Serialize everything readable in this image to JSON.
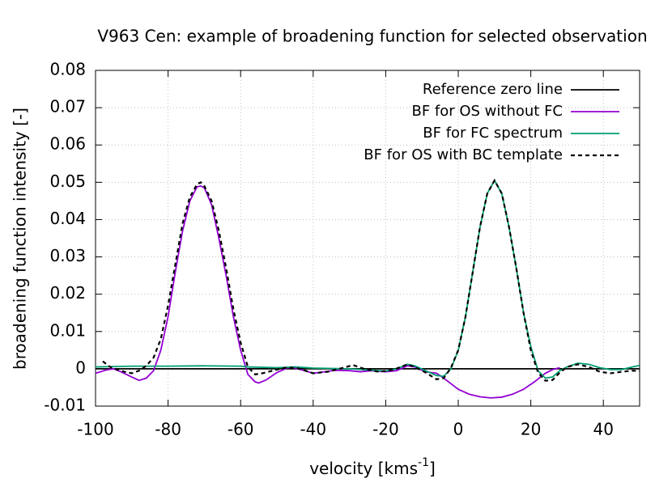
{
  "chart_data": {
    "type": "line",
    "title": "V963 Cen: example of broadening function for selected observation",
    "xlabel": [
      "velocity [kms",
      "-1",
      "]"
    ],
    "ylabel": "broadening function intensity [-]",
    "xlim": [
      -100,
      50
    ],
    "xticks": [
      -100,
      -80,
      -60,
      -40,
      -20,
      0,
      20,
      40
    ],
    "ylim": [
      -0.01,
      0.08
    ],
    "yticks": [
      -0.01,
      0,
      0.01,
      0.02,
      0.03,
      0.04,
      0.05,
      0.06,
      0.07,
      0.08
    ],
    "grid": true,
    "legend": "top-right",
    "series": [
      {
        "name": "Reference zero line",
        "color": "#000000",
        "dashed": false,
        "x": [
          -100,
          50
        ],
        "values": [
          0,
          0
        ]
      },
      {
        "name": "BF for OS without FC",
        "color": "#9400d3",
        "dashed": false,
        "x": [
          -100,
          -97,
          -95,
          -93,
          -90,
          -88,
          -86,
          -84,
          -82,
          -80,
          -78,
          -76,
          -74,
          -72,
          -71,
          -70,
          -68,
          -66,
          -64,
          -62,
          -60,
          -58,
          -56,
          -55,
          -53,
          -50,
          -47,
          -45,
          -42,
          -40,
          -37,
          -34,
          -30,
          -27,
          -24,
          -20,
          -17,
          -14,
          -12,
          -9,
          -6,
          -4,
          -2,
          0,
          3,
          6,
          9,
          12,
          15,
          18,
          21,
          24,
          26,
          28
        ],
        "values": [
          -0.0012,
          -0.0003,
          0,
          -0.0008,
          -0.0022,
          -0.0031,
          -0.0025,
          -0.0005,
          0.005,
          0.014,
          0.026,
          0.037,
          0.045,
          0.0488,
          0.049,
          0.0485,
          0.044,
          0.035,
          0.025,
          0.014,
          0.005,
          -0.0015,
          -0.0035,
          -0.0038,
          -0.003,
          -0.001,
          0.0003,
          0.0002,
          -0.0006,
          -0.0012,
          -0.0008,
          -0.0004,
          -0.0005,
          -0.0008,
          -0.0005,
          -0.0008,
          -0.0005,
          0.0008,
          0.0005,
          -0.0008,
          -0.0012,
          -0.0025,
          -0.004,
          -0.0055,
          -0.0068,
          -0.0075,
          -0.0078,
          -0.0076,
          -0.0068,
          -0.0055,
          -0.0035,
          -0.0012,
          -0.0002,
          0.0003
        ]
      },
      {
        "name": "BF for FC spectrum",
        "color": "#009e73",
        "dashed": false,
        "x": [
          -100,
          -90,
          -80,
          -70,
          -60,
          -58,
          -50,
          -45,
          -40,
          -30,
          -25,
          -20,
          -17,
          -14,
          -12,
          -9,
          -6,
          -4,
          -2,
          0,
          2,
          4,
          6,
          8,
          10,
          12,
          14,
          16,
          18,
          20,
          22,
          24,
          26,
          28,
          30,
          33,
          36,
          39,
          42,
          45,
          48,
          50
        ],
        "values": [
          0.0005,
          0.0007,
          0.0007,
          0.0008,
          0.0007,
          0.0005,
          0.0003,
          0.0005,
          0.0002,
          0,
          -0.0003,
          -0.0006,
          0,
          0.0012,
          0.0008,
          -0.0005,
          -0.0018,
          -0.002,
          0,
          0.005,
          0.014,
          0.026,
          0.038,
          0.047,
          0.0505,
          0.047,
          0.038,
          0.027,
          0.015,
          0.006,
          -0.0005,
          -0.0025,
          -0.0022,
          -0.0005,
          0.0005,
          0.0015,
          0.0012,
          0.0003,
          -0.0002,
          -0.0002,
          0.0005,
          0.0009
        ]
      },
      {
        "name": "BF for OS with BC template",
        "color": "#000000",
        "dashed": true,
        "x": [
          -98,
          -96,
          -94,
          -92,
          -90,
          -88,
          -86,
          -84,
          -82,
          -80,
          -78,
          -76,
          -74,
          -72,
          -71,
          -70,
          -68,
          -66,
          -64,
          -62,
          -60,
          -58,
          -56,
          -54,
          -50,
          -47,
          -44,
          -40,
          -36,
          -32,
          -29,
          -26,
          -22,
          -18,
          -14,
          -12,
          -9,
          -6,
          -4,
          -2,
          0,
          2,
          4,
          6,
          8,
          10,
          12,
          14,
          16,
          18,
          20,
          22,
          24,
          26,
          28,
          30,
          33,
          36,
          39,
          42,
          45,
          48,
          50
        ],
        "values": [
          0.002,
          0.0005,
          -0.0002,
          -0.0008,
          -0.0012,
          -0.0005,
          0.0008,
          0.003,
          0.008,
          0.017,
          0.028,
          0.039,
          0.046,
          0.0495,
          0.05,
          0.049,
          0.045,
          0.037,
          0.027,
          0.016,
          0.007,
          0.0005,
          -0.0015,
          -0.0012,
          -0.0002,
          0.0004,
          0.0001,
          -0.0012,
          -0.0008,
          0.0002,
          0.001,
          0,
          -0.0008,
          -0.0003,
          0.0012,
          0.0005,
          -0.001,
          -0.0028,
          -0.0025,
          0.0003,
          0.005,
          0.014,
          0.026,
          0.038,
          0.047,
          0.0505,
          0.047,
          0.038,
          0.027,
          0.015,
          0.005,
          -0.001,
          -0.0032,
          -0.003,
          -0.001,
          0.0005,
          0.0012,
          0.0005,
          -0.0008,
          -0.0012,
          -0.0008,
          -0.0005,
          -0.0006
        ]
      }
    ]
  }
}
